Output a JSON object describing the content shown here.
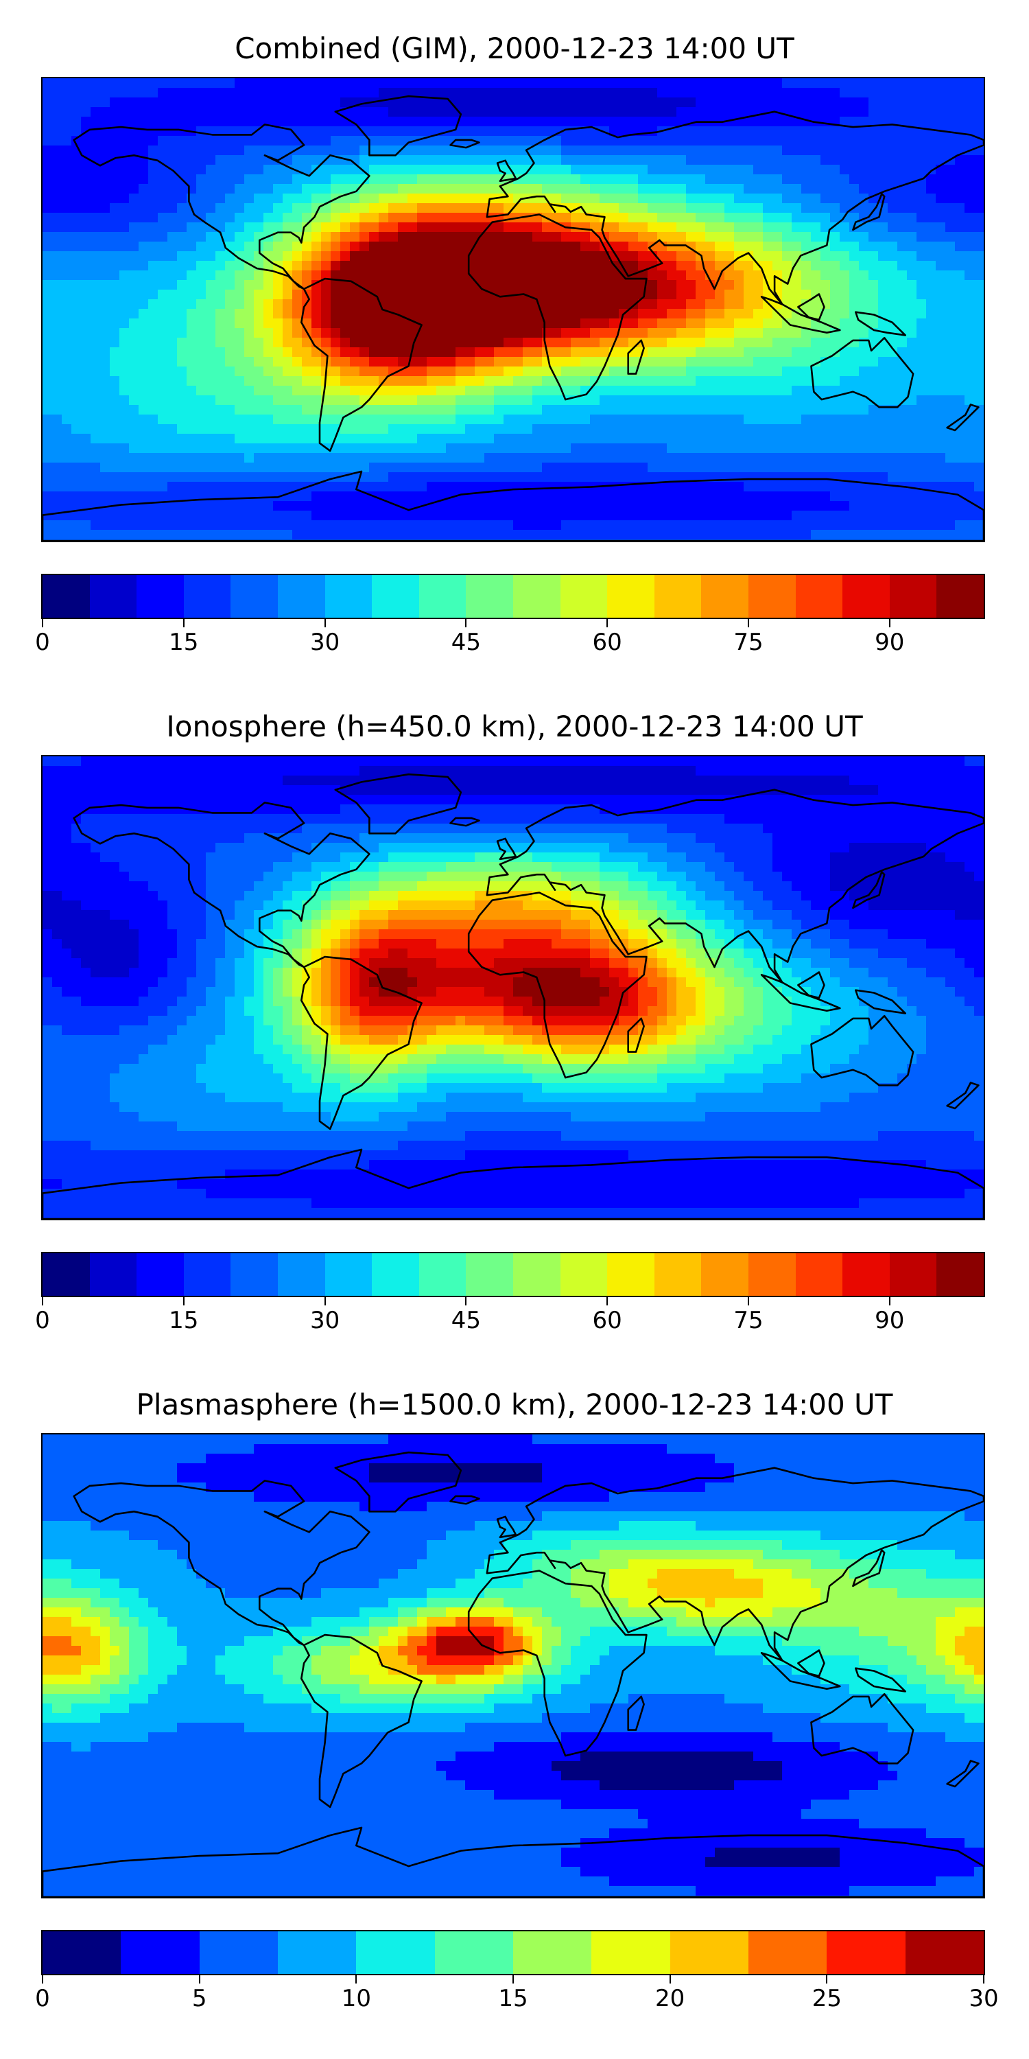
{
  "panels": [
    {
      "title": "Combined (GIM), 2000-12-23 14:00 UT",
      "colorbar": {
        "min": 0,
        "max": 100,
        "step": 5,
        "tick_labels": [
          "0",
          "15",
          "30",
          "45",
          "60",
          "75",
          "90"
        ],
        "tick_values": [
          0,
          15,
          30,
          45,
          60,
          75,
          90
        ]
      },
      "field": {
        "background_level": 25,
        "blobs": [
          {
            "lon": 5,
            "lat": 5,
            "peak": 95,
            "sx": 55,
            "sy": 20
          },
          {
            "lon": -45,
            "lat": 0,
            "peak": 80,
            "sx": 30,
            "sy": 25
          },
          {
            "lon": 70,
            "lat": 15,
            "peak": 45,
            "sx": 45,
            "sy": 18
          },
          {
            "lon": -10,
            "lat": 30,
            "peak": 50,
            "sx": 40,
            "sy": 18
          },
          {
            "lon": 110,
            "lat": -10,
            "peak": 35,
            "sx": 40,
            "sy": 25
          },
          {
            "lon": -110,
            "lat": -30,
            "peak": 38,
            "sx": 45,
            "sy": 25
          },
          {
            "lon": -150,
            "lat": 20,
            "peak": 30,
            "sx": 35,
            "sy": 25
          }
        ],
        "lows": [
          {
            "lon": 0,
            "lat": 80,
            "depth": -18,
            "sx": 120,
            "sy": 12
          },
          {
            "lon": -150,
            "lat": 45,
            "depth": -10,
            "sx": 30,
            "sy": 20
          },
          {
            "lon": 160,
            "lat": 45,
            "depth": -10,
            "sx": 40,
            "sy": 15
          },
          {
            "lon": 0,
            "lat": -75,
            "depth": -15,
            "sx": 150,
            "sy": 10
          }
        ]
      }
    },
    {
      "title": "Ionosphere  (h=450.0 km), 2000-12-23 14:00 UT",
      "colorbar": {
        "min": 0,
        "max": 100,
        "step": 5,
        "tick_labels": [
          "0",
          "15",
          "30",
          "45",
          "60",
          "75",
          "90"
        ],
        "tick_values": [
          0,
          15,
          30,
          45,
          60,
          75,
          90
        ]
      },
      "field": {
        "background_level": 20,
        "blobs": [
          {
            "lon": 30,
            "lat": -5,
            "peak": 78,
            "sx": 35,
            "sy": 20
          },
          {
            "lon": -30,
            "lat": 5,
            "peak": 62,
            "sx": 45,
            "sy": 20
          },
          {
            "lon": -55,
            "lat": -5,
            "peak": 55,
            "sx": 20,
            "sy": 25
          },
          {
            "lon": 0,
            "lat": 35,
            "peak": 50,
            "sx": 45,
            "sy": 15
          },
          {
            "lon": 100,
            "lat": -10,
            "peak": 35,
            "sx": 40,
            "sy": 25
          },
          {
            "lon": -110,
            "lat": -35,
            "peak": 30,
            "sx": 40,
            "sy": 20
          }
        ],
        "lows": [
          {
            "lon": -150,
            "lat": 10,
            "depth": -12,
            "sx": 25,
            "sy": 20
          },
          {
            "lon": 140,
            "lat": 40,
            "depth": -14,
            "sx": 40,
            "sy": 20
          },
          {
            "lon": 0,
            "lat": 80,
            "depth": -12,
            "sx": 150,
            "sy": 10
          },
          {
            "lon": 20,
            "lat": -75,
            "depth": -10,
            "sx": 150,
            "sy": 10
          }
        ]
      }
    },
    {
      "title": "Plasmasphere (h=1500.0 km), 2000-12-23 14:00 UT",
      "colorbar": {
        "min": 0,
        "max": 30,
        "step": 2.5,
        "tick_labels": [
          "0",
          "5",
          "10",
          "15",
          "20",
          "25",
          "30"
        ],
        "tick_values": [
          0,
          5,
          10,
          15,
          20,
          25,
          30
        ]
      },
      "field": {
        "background_level": 7,
        "blobs": [
          {
            "lon": -15,
            "lat": 10,
            "peak": 23,
            "sx": 20,
            "sy": 10
          },
          {
            "lon": -45,
            "lat": 0,
            "peak": 18,
            "sx": 40,
            "sy": 12
          },
          {
            "lon": 70,
            "lat": 30,
            "peak": 20,
            "sx": 40,
            "sy": 12
          },
          {
            "lon": -170,
            "lat": 5,
            "peak": 19,
            "sx": 20,
            "sy": 15
          },
          {
            "lon": 150,
            "lat": 15,
            "peak": 14,
            "sx": 40,
            "sy": 20
          },
          {
            "lon": 0,
            "lat": 45,
            "peak": 12,
            "sx": 60,
            "sy": 10
          }
        ],
        "lows": [
          {
            "lon": -20,
            "lat": 75,
            "depth": -5,
            "sx": 80,
            "sy": 10
          },
          {
            "lon": 60,
            "lat": -40,
            "depth": -6,
            "sx": 60,
            "sy": 10
          },
          {
            "lon": 100,
            "lat": -75,
            "depth": -5,
            "sx": 60,
            "sy": 10
          },
          {
            "lon": -40,
            "lat": 45,
            "depth": -4,
            "sx": 40,
            "sy": 10
          }
        ]
      }
    }
  ],
  "colors": {
    "palette": [
      "#00007f",
      "#0000cc",
      "#0000ff",
      "#0030ff",
      "#0060ff",
      "#0090ff",
      "#00c0ff",
      "#10f0e8",
      "#40ffb8",
      "#70ff88",
      "#a0ff58",
      "#d0ff28",
      "#f8f000",
      "#ffc400",
      "#ff9800",
      "#ff6c00",
      "#ff3c00",
      "#e80800",
      "#c00000",
      "#8b0000"
    ],
    "palette_plasma": [
      "#00007f",
      "#0000ff",
      "#0060ff",
      "#00a8ff",
      "#10f0e8",
      "#50ffa8",
      "#a0ff58",
      "#e8ff10",
      "#ffc400",
      "#ff6c00",
      "#ff1800",
      "#a80000"
    ],
    "coastline": "#000000"
  }
}
